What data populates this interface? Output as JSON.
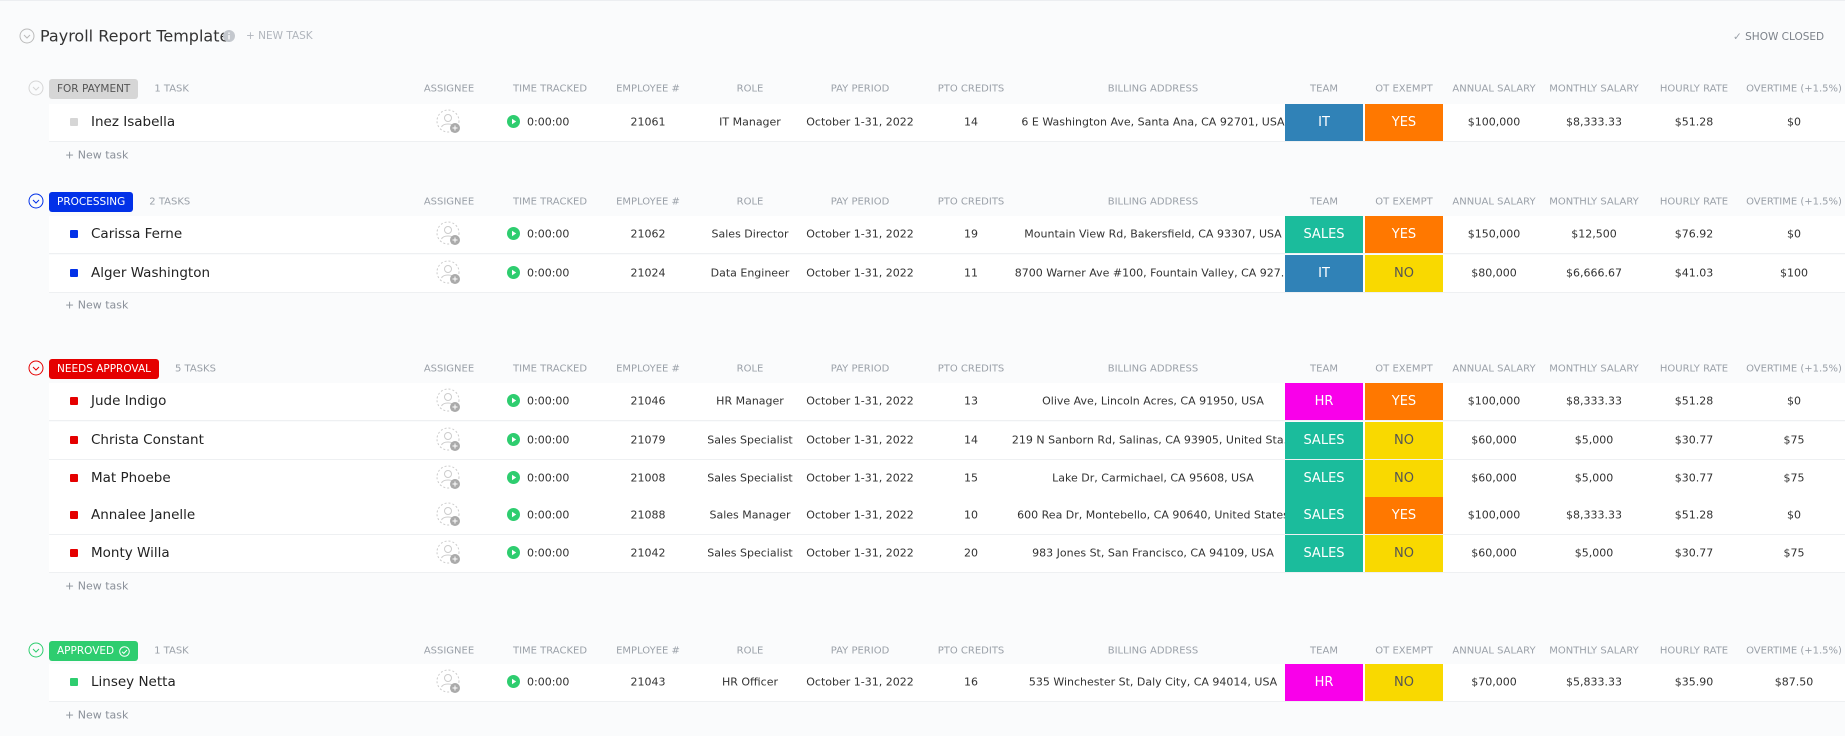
{
  "header": {
    "title": "Payroll Report Template",
    "new_task": "+ NEW TASK",
    "show_closed": "SHOW CLOSED"
  },
  "columns": [
    "ASSIGNEE",
    "TIME TRACKED",
    "EMPLOYEE #",
    "ROLE",
    "PAY PERIOD",
    "PTO CREDITS",
    "BILLING ADDRESS",
    "TEAM",
    "OT EXEMPT",
    "ANNUAL SALARY",
    "MONTHLY SALARY",
    "HOURLY RATE",
    "OVERTIME (+1.5%)"
  ],
  "groups": [
    {
      "status": "FOR PAYMENT",
      "count": "1 TASK",
      "color": "#d6d6d6",
      "text_color": "#555555",
      "new_task": "+ New task",
      "rows": [
        {
          "name": "Inez Isabella",
          "time": "0:00:00",
          "employee": "21061",
          "role": "IT Manager",
          "period": "October 1-31, 2022",
          "pto": "14",
          "address": "6 E Washington Ave, Santa Ana, CA 92701, USA",
          "team": {
            "label": "IT",
            "color": "#3082b7",
            "text_color": "#ffffff"
          },
          "ot": {
            "label": "YES",
            "color": "#ff7800",
            "text_color": "#ffffff"
          },
          "annual": "$100,000",
          "monthly": "$8,333.33",
          "hourly": "$51.28",
          "overtime": "$0"
        }
      ]
    },
    {
      "status": "PROCESSING",
      "count": "2 TASKS",
      "color": "#0231e8",
      "text_color": "#ffffff",
      "new_task": "+ New task",
      "rows": [
        {
          "name": "Carissa Ferne",
          "time": "0:00:00",
          "employee": "21062",
          "role": "Sales Director",
          "period": "October 1-31, 2022",
          "pto": "19",
          "address": "Mountain View Rd, Bakersfield, CA 93307, USA",
          "team": {
            "label": "SALES",
            "color": "#1bbc9c",
            "text_color": "#ffffff"
          },
          "ot": {
            "label": "YES",
            "color": "#ff7800",
            "text_color": "#ffffff"
          },
          "annual": "$150,000",
          "monthly": "$12,500",
          "hourly": "$76.92",
          "overtime": "$0"
        },
        {
          "name": "Alger Washington",
          "time": "0:00:00",
          "employee": "21024",
          "role": "Data Engineer",
          "period": "October 1-31, 2022",
          "pto": "11",
          "address": "8700 Warner Ave #100, Fountain Valley, CA 927...",
          "team": {
            "label": "IT",
            "color": "#3082b7",
            "text_color": "#ffffff"
          },
          "ot": {
            "label": "NO",
            "color": "#f9d900",
            "text_color": "#555555"
          },
          "annual": "$80,000",
          "monthly": "$6,666.67",
          "hourly": "$41.03",
          "overtime": "$100"
        }
      ]
    },
    {
      "status": "NEEDS APPROVAL",
      "count": "5 TASKS",
      "color": "#e50000",
      "text_color": "#ffffff",
      "new_task": "+ New task",
      "rows": [
        {
          "name": "Jude Indigo",
          "time": "0:00:00",
          "employee": "21046",
          "role": "HR Manager",
          "period": "October 1-31, 2022",
          "pto": "13",
          "address": "Olive Ave, Lincoln Acres, CA 91950, USA",
          "team": {
            "label": "HR",
            "color": "#f900ea",
            "text_color": "#ffffff"
          },
          "ot": {
            "label": "YES",
            "color": "#ff7800",
            "text_color": "#ffffff"
          },
          "annual": "$100,000",
          "monthly": "$8,333.33",
          "hourly": "$51.28",
          "overtime": "$0"
        },
        {
          "name": "Christa Constant",
          "time": "0:00:00",
          "employee": "21079",
          "role": "Sales Specialist",
          "period": "October 1-31, 2022",
          "pto": "14",
          "address": "219 N Sanborn Rd, Salinas, CA 93905, United Sta...",
          "team": {
            "label": "SALES",
            "color": "#1bbc9c",
            "text_color": "#ffffff"
          },
          "ot": {
            "label": "NO",
            "color": "#f9d900",
            "text_color": "#555555"
          },
          "annual": "$60,000",
          "monthly": "$5,000",
          "hourly": "$30.77",
          "overtime": "$75"
        },
        {
          "name": "Mat Phoebe",
          "time": "0:00:00",
          "employee": "21008",
          "role": "Sales Specialist",
          "period": "October 1-31, 2022",
          "pto": "15",
          "address": "Lake Dr, Carmichael, CA 95608, USA",
          "team": {
            "label": "SALES",
            "color": "#1bbc9c",
            "text_color": "#ffffff"
          },
          "ot": {
            "label": "NO",
            "color": "#f9d900",
            "text_color": "#555555"
          },
          "annual": "$60,000",
          "monthly": "$5,000",
          "hourly": "$30.77",
          "overtime": "$75"
        },
        {
          "name": "Annalee Janelle",
          "time": "0:00:00",
          "employee": "21088",
          "role": "Sales Manager",
          "period": "October 1-31, 2022",
          "pto": "10",
          "address": "600 Rea Dr, Montebello, CA 90640, United States",
          "team": {
            "label": "SALES",
            "color": "#1bbc9c",
            "text_color": "#ffffff"
          },
          "ot": {
            "label": "YES",
            "color": "#ff7800",
            "text_color": "#ffffff"
          },
          "annual": "$100,000",
          "monthly": "$8,333.33",
          "hourly": "$51.28",
          "overtime": "$0"
        },
        {
          "name": "Monty Willa",
          "time": "0:00:00",
          "employee": "21042",
          "role": "Sales Specialist",
          "period": "October 1-31, 2022",
          "pto": "20",
          "address": "983 Jones St, San Francisco, CA 94109, USA",
          "team": {
            "label": "SALES",
            "color": "#1bbc9c",
            "text_color": "#ffffff"
          },
          "ot": {
            "label": "NO",
            "color": "#f9d900",
            "text_color": "#555555"
          },
          "annual": "$60,000",
          "monthly": "$5,000",
          "hourly": "$30.77",
          "overtime": "$75"
        }
      ]
    },
    {
      "status": "APPROVED",
      "count": "1 TASK",
      "color": "#2ecd6f",
      "text_color": "#ffffff",
      "new_task": "+ New task",
      "rows": [
        {
          "name": "Linsey Netta",
          "time": "0:00:00",
          "employee": "21043",
          "role": "HR Officer",
          "period": "October 1-31, 2022",
          "pto": "16",
          "address": "535 Winchester St, Daly City, CA 94014, USA",
          "team": {
            "label": "HR",
            "color": "#f900ea",
            "text_color": "#ffffff"
          },
          "ot": {
            "label": "NO",
            "color": "#f9d900",
            "text_color": "#555555"
          },
          "annual": "$70,000",
          "monthly": "$5,833.33",
          "hourly": "$35.90",
          "overtime": "$87.50"
        }
      ]
    }
  ]
}
